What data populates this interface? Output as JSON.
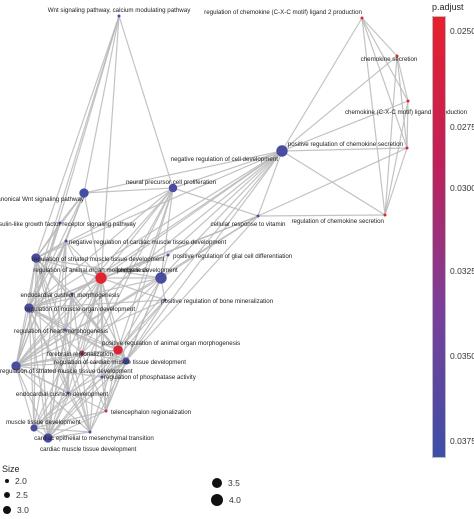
{
  "legend": {
    "color_title": "p.adjust",
    "color_ticks": [
      "0.0250",
      "0.0275",
      "0.0300",
      "0.0325",
      "0.0350",
      "0.0375"
    ],
    "color_range": [
      "#e8202c",
      "#3d4fa8"
    ],
    "size_title": "Size",
    "size_values": [
      "2.0",
      "2.5",
      "3.0",
      "3.5",
      "4.0"
    ]
  },
  "nodes": [
    {
      "id": 0,
      "label": "Wnt signaling pathway, calcium modulating pathway",
      "size": 2.0,
      "p": 0.0385
    },
    {
      "id": 1,
      "label": "regulation of chemokine (C-X-C motif) ligand 2 production",
      "size": 2.0,
      "p": 0.025
    },
    {
      "id": 2,
      "label": "chemokine secretion",
      "size": 2.0,
      "p": 0.0255
    },
    {
      "id": 3,
      "label": "chemokine (C-X-C motif) ligand 2 production",
      "size": 2.0,
      "p": 0.025
    },
    {
      "id": 4,
      "label": "positive regulation of chemokine secretion",
      "size": 2.0,
      "p": 0.0265
    },
    {
      "id": 5,
      "label": "negative regulation of cell development",
      "size": 4.0,
      "p": 0.0375
    },
    {
      "id": 6,
      "label": "neural precursor cell proliferation",
      "size": 3.3,
      "p": 0.0375
    },
    {
      "id": 7,
      "label": "negative regulation of canonical Wnt signaling pathway",
      "size": 3.5,
      "p": 0.038
    },
    {
      "id": 8,
      "label": "cellular response to vitamin",
      "size": 2.0,
      "p": 0.0375
    },
    {
      "id": 9,
      "label": "regulation of chemokine secretion",
      "size": 2.0,
      "p": 0.025
    },
    {
      "id": 10,
      "label": "insulin-like growth factor receptor signaling pathway",
      "size": 2.0,
      "p": 0.038
    },
    {
      "id": 11,
      "label": "negative regulation of cardiac muscle tissue development",
      "size": 2.0,
      "p": 0.0375
    },
    {
      "id": 12,
      "label": "regulation of striated muscle tissue development",
      "size": 3.5,
      "p": 0.0375
    },
    {
      "id": 13,
      "label": "regulation of animal organ morphogenesis",
      "size": 4.0,
      "p": 0.025
    },
    {
      "id": 14,
      "label": "forebrain development",
      "size": 4.0,
      "p": 0.0375
    },
    {
      "id": 15,
      "label": "positive regulation of glial cell differentiation",
      "size": 2.0,
      "p": 0.0375
    },
    {
      "id": 16,
      "label": "endocardial cushion morphogenesis",
      "size": 2.0,
      "p": 0.038
    },
    {
      "id": 17,
      "label": "regulation of muscle organ development",
      "size": 3.5,
      "p": 0.0375
    },
    {
      "id": 18,
      "label": "positive regulation of bone mineralization",
      "size": 2.0,
      "p": 0.038
    },
    {
      "id": 19,
      "label": "regulation of heart morphogenesis",
      "size": 2.0,
      "p": 0.0375
    },
    {
      "id": 20,
      "label": "positive regulation of animal organ morphogenesis",
      "size": 3.5,
      "p": 0.0255
    },
    {
      "id": 21,
      "label": "forebrain regionalization",
      "size": 2.5,
      "p": 0.03
    },
    {
      "id": 22,
      "label": "regulation of cardiac muscle tissue development",
      "size": 3.0,
      "p": 0.0375
    },
    {
      "id": 23,
      "label": "regulation of phosphatase activity",
      "size": 2.0,
      "p": 0.038
    },
    {
      "id": 24,
      "label": "regulation of striated muscle tissue development",
      "size": 3.5,
      "p": 0.0375
    },
    {
      "id": 25,
      "label": "endocardial cushion development",
      "size": 2.0,
      "p": 0.038
    },
    {
      "id": 26,
      "label": "telencephalon regionalization",
      "size": 2.0,
      "p": 0.027
    },
    {
      "id": 27,
      "label": "muscle tissue development",
      "size": 3.0,
      "p": 0.0375
    },
    {
      "id": 28,
      "label": "cardiac epithelial to mesenchymal transition",
      "size": 2.0,
      "p": 0.038
    },
    {
      "id": 29,
      "label": "cardiac muscle tissue development",
      "size": 3.5,
      "p": 0.0375
    }
  ],
  "edges": [
    [
      0,
      6
    ],
    [
      0,
      7
    ],
    [
      0,
      12
    ],
    [
      0,
      17
    ],
    [
      0,
      24
    ],
    [
      0,
      13
    ],
    [
      1,
      2
    ],
    [
      1,
      3
    ],
    [
      1,
      4
    ],
    [
      1,
      9
    ],
    [
      1,
      5
    ],
    [
      2,
      3
    ],
    [
      2,
      4
    ],
    [
      2,
      9
    ],
    [
      3,
      4
    ],
    [
      3,
      9
    ],
    [
      4,
      9
    ],
    [
      4,
      5
    ],
    [
      2,
      5
    ],
    [
      3,
      5
    ],
    [
      5,
      9
    ],
    [
      5,
      8
    ],
    [
      5,
      6
    ],
    [
      5,
      7
    ],
    [
      5,
      13
    ],
    [
      5,
      14
    ],
    [
      5,
      17
    ],
    [
      5,
      12
    ],
    [
      5,
      22
    ],
    [
      5,
      16
    ],
    [
      5,
      24
    ],
    [
      5,
      20
    ],
    [
      5,
      15
    ],
    [
      8,
      9
    ],
    [
      8,
      4
    ],
    [
      8,
      6
    ],
    [
      8,
      13
    ],
    [
      8,
      14
    ],
    [
      8,
      22
    ],
    [
      8,
      17
    ],
    [
      8,
      24
    ],
    [
      6,
      7
    ],
    [
      6,
      13
    ],
    [
      6,
      14
    ],
    [
      6,
      21
    ],
    [
      6,
      26
    ],
    [
      6,
      12
    ],
    [
      6,
      17
    ],
    [
      6,
      24
    ],
    [
      6,
      29
    ],
    [
      6,
      28
    ],
    [
      7,
      12
    ],
    [
      7,
      17
    ],
    [
      7,
      13
    ],
    [
      7,
      11
    ],
    [
      7,
      24
    ],
    [
      7,
      10
    ],
    [
      10,
      12
    ],
    [
      10,
      17
    ],
    [
      10,
      24
    ],
    [
      11,
      12
    ],
    [
      11,
      13
    ],
    [
      11,
      17
    ],
    [
      11,
      19
    ],
    [
      11,
      22
    ],
    [
      11,
      24
    ],
    [
      11,
      29
    ],
    [
      11,
      27
    ],
    [
      12,
      13
    ],
    [
      12,
      16
    ],
    [
      12,
      17
    ],
    [
      12,
      19
    ],
    [
      12,
      20
    ],
    [
      12,
      22
    ],
    [
      12,
      24
    ],
    [
      12,
      25
    ],
    [
      12,
      27
    ],
    [
      12,
      28
    ],
    [
      12,
      29
    ],
    [
      12,
      14
    ],
    [
      13,
      14
    ],
    [
      13,
      16
    ],
    [
      13,
      17
    ],
    [
      13,
      18
    ],
    [
      13,
      19
    ],
    [
      13,
      20
    ],
    [
      13,
      21
    ],
    [
      13,
      22
    ],
    [
      13,
      23
    ],
    [
      13,
      24
    ],
    [
      13,
      25
    ],
    [
      13,
      26
    ],
    [
      13,
      27
    ],
    [
      13,
      28
    ],
    [
      13,
      29
    ],
    [
      13,
      15
    ],
    [
      14,
      15
    ],
    [
      14,
      21
    ],
    [
      14,
      26
    ],
    [
      14,
      17
    ],
    [
      14,
      20
    ],
    [
      14,
      24
    ],
    [
      14,
      18
    ],
    [
      14,
      22
    ],
    [
      16,
      17
    ],
    [
      16,
      19
    ],
    [
      16,
      22
    ],
    [
      16,
      25
    ],
    [
      16,
      28
    ],
    [
      16,
      24
    ],
    [
      16,
      29
    ],
    [
      17,
      19
    ],
    [
      17,
      20
    ],
    [
      17,
      22
    ],
    [
      17,
      24
    ],
    [
      17,
      25
    ],
    [
      17,
      27
    ],
    [
      17,
      28
    ],
    [
      17,
      29
    ],
    [
      17,
      18
    ],
    [
      17,
      21
    ],
    [
      18,
      20
    ],
    [
      18,
      22
    ],
    [
      18,
      23
    ],
    [
      18,
      24
    ],
    [
      19,
      20
    ],
    [
      19,
      22
    ],
    [
      19,
      24
    ],
    [
      19,
      25
    ],
    [
      19,
      28
    ],
    [
      19,
      29
    ],
    [
      20,
      21
    ],
    [
      20,
      22
    ],
    [
      20,
      23
    ],
    [
      20,
      24
    ],
    [
      20,
      26
    ],
    [
      20,
      27
    ],
    [
      20,
      29
    ],
    [
      21,
      22
    ],
    [
      21,
      26
    ],
    [
      21,
      24
    ],
    [
      21,
      27
    ],
    [
      22,
      23
    ],
    [
      22,
      24
    ],
    [
      22,
      25
    ],
    [
      22,
      26
    ],
    [
      22,
      27
    ],
    [
      22,
      28
    ],
    [
      22,
      29
    ],
    [
      23,
      24
    ],
    [
      23,
      26
    ],
    [
      23,
      29
    ],
    [
      24,
      25
    ],
    [
      24,
      27
    ],
    [
      24,
      28
    ],
    [
      24,
      29
    ],
    [
      24,
      26
    ],
    [
      25,
      27
    ],
    [
      25,
      28
    ],
    [
      25,
      29
    ],
    [
      26,
      27
    ],
    [
      26,
      29
    ],
    [
      27,
      28
    ],
    [
      27,
      29
    ],
    [
      28,
      29
    ]
  ]
}
